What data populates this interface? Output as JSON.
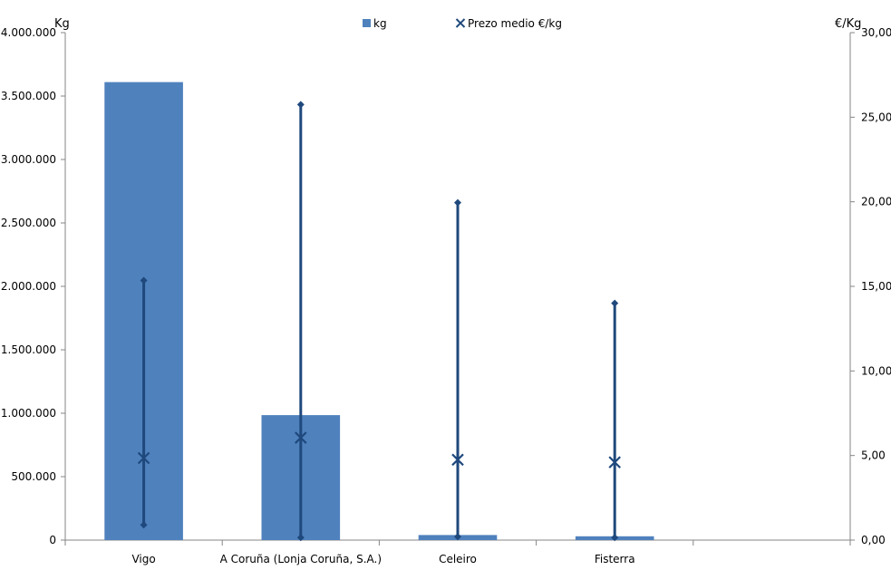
{
  "chart_data": {
    "type": "bar",
    "categories": [
      "Vigo",
      "A Coruña (Lonja Coruña, S.A.)",
      "Celeiro",
      "Fisterra"
    ],
    "y_left_label": "Kg",
    "y_right_label": "€/Kg",
    "y_left_lim": [
      0,
      4000000
    ],
    "y_right_lim": [
      0,
      30
    ],
    "y_left_ticks": [
      "0",
      "500.000",
      "1.000.000",
      "1.500.000",
      "2.000.000",
      "2.500.000",
      "3.000.000",
      "3.500.000",
      "4.000.000"
    ],
    "y_right_ticks": [
      "0,00",
      "5,00",
      "10,00",
      "15,00",
      "20,00",
      "25,00",
      "30,00"
    ],
    "series": [
      {
        "name": "kg",
        "type": "bar",
        "axis": "left",
        "color": "#4F81BD",
        "values": [
          3610000,
          985000,
          40000,
          30000
        ]
      },
      {
        "name": "Prezo medio €/kg",
        "type": "marker-x",
        "axis": "right",
        "color": "#1F497D",
        "values": [
          4.85,
          6.05,
          4.75,
          4.6
        ],
        "min": [
          0.9,
          0.15,
          0.2,
          0.15
        ],
        "max": [
          15.35,
          25.75,
          19.95,
          14.0
        ]
      }
    ],
    "legend_position": "top-center",
    "grid": false
  }
}
